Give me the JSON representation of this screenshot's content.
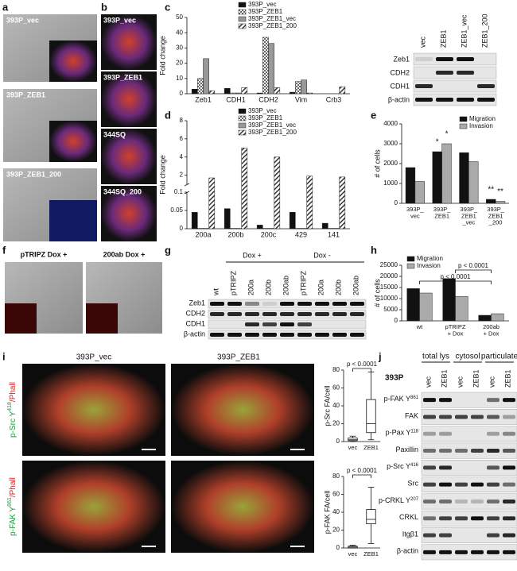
{
  "panel_labels": [
    "a",
    "b",
    "c",
    "d",
    "e",
    "f",
    "g",
    "h",
    "i",
    "j"
  ],
  "a": {
    "images": [
      "393P_vec",
      "393P_ZEB1",
      "393P_ZEB1_200"
    ]
  },
  "b": {
    "images": [
      "393P_vec",
      "393P_ZEB1",
      "344SQ",
      "344SQ_200"
    ]
  },
  "c_blot": {
    "lanes": [
      "vec",
      "ZEB1",
      "ZEB1_vec",
      "ZEB1_200"
    ],
    "rows": [
      "Zeb1",
      "CDH2",
      "CDH1",
      "β-actin"
    ]
  },
  "f": {
    "images": [
      "pTRIPZ Dox +",
      "200ab Dox +"
    ]
  },
  "g": {
    "groups": [
      "Dox +",
      "Dox -"
    ],
    "lanes": [
      "wt",
      "pTRIPZ",
      "200a",
      "200b",
      "200ab",
      "pTRIPZ",
      "200a",
      "200b",
      "200ab"
    ],
    "rows": [
      "Zeb1",
      "CDH2",
      "CDH1",
      "β-actin"
    ]
  },
  "i": {
    "columns": [
      "393P_vec",
      "393P_ZEB1"
    ],
    "rows": [
      {
        "label": "p-Src Y",
        "sup": "418",
        "suffix": "/Phall"
      },
      {
        "label": "p-FAK Y",
        "sup": "861",
        "suffix": "/Phall"
      }
    ]
  },
  "j": {
    "cell_line": "393P",
    "groups": [
      "total lys",
      "cytosol",
      "particulate"
    ],
    "lanes": [
      "vec",
      "ZEB1",
      "vec",
      "ZEB1",
      "vec",
      "ZEB1"
    ],
    "rows": [
      {
        "label": "p-FAK Y",
        "sup": "861"
      },
      {
        "label": "FAK"
      },
      {
        "label": "p-Pax Y",
        "sup": "118"
      },
      {
        "label": "Paxillin"
      },
      {
        "label": "p-Src Y",
        "sup": "416"
      },
      {
        "label": "Src"
      },
      {
        "label": "p-CRKL Y",
        "sup": "207"
      },
      {
        "label": "CRKL"
      },
      {
        "label": "Itgβ1"
      },
      {
        "label": "β-actin"
      }
    ]
  },
  "chart_data": [
    {
      "type": "bar",
      "ylabel": "Fold change",
      "categories": [
        "Zeb1",
        "CDH1",
        "CDH2",
        "Vim",
        "Crb3"
      ],
      "ylim": [
        0,
        50
      ],
      "yticks": [
        0,
        10,
        20,
        30,
        40,
        50
      ],
      "series": [
        {
          "name": "393P_vec",
          "color": "#111111",
          "values": [
            3,
            3.5,
            0.5,
            1,
            0
          ]
        },
        {
          "name": "393P_ZEB1",
          "color": "#888888",
          "pattern": "check",
          "values": [
            10,
            0.5,
            37,
            8,
            0
          ]
        },
        {
          "name": "393P_ZEB1_vec",
          "color": "#999999",
          "values": [
            23,
            0.5,
            33,
            9,
            0
          ]
        },
        {
          "name": "393P_ZEB1_200",
          "color": "#555555",
          "pattern": "hatch",
          "values": [
            2,
            4,
            4,
            0.5,
            4.5
          ]
        }
      ]
    },
    {
      "type": "bar",
      "ylabel": "Fold change",
      "categories": [
        "200a",
        "200b",
        "200c",
        "429",
        "141"
      ],
      "ylim": [
        0,
        8
      ],
      "axis_break": [
        0.1,
        1
      ],
      "yticks": [
        0,
        0.05,
        0.1,
        2,
        4,
        6,
        8
      ],
      "series": [
        {
          "name": "393P_vec",
          "color": "#111111",
          "values": [
            0.045,
            0.055,
            0.01,
            0.045,
            0.015
          ]
        },
        {
          "name": "393P_ZEB1",
          "color": "#888888",
          "pattern": "check",
          "values": [
            0.001,
            0.001,
            0.001,
            0.001,
            0.001
          ]
        },
        {
          "name": "393P_ZEB1_vec",
          "color": "#999999",
          "values": [
            0.001,
            0.001,
            0.001,
            0.001,
            0.001
          ]
        },
        {
          "name": "393P_ZEB1_200",
          "color": "#555555",
          "pattern": "hatch",
          "values": [
            1.7,
            5,
            4,
            1.9,
            1.8
          ]
        }
      ]
    },
    {
      "type": "bar",
      "ylabel": "# of cells",
      "categories": [
        "393P_\nvec",
        "393P_\nZEB1",
        "393P_\nZEB1\n_vec",
        "393P_\nZEB1\n_200"
      ],
      "ylim": [
        0,
        4000
      ],
      "yticks": [
        0,
        1000,
        2000,
        3000,
        4000
      ],
      "series": [
        {
          "name": "Migration",
          "color": "#111111",
          "values": [
            1800,
            2600,
            2550,
            200
          ]
        },
        {
          "name": "Invasion",
          "color": "#aaaaaa",
          "values": [
            1100,
            3000,
            2100,
            100
          ]
        }
      ],
      "annotations": [
        {
          "text": "*",
          "category": "393P_\nZEB1",
          "series": "Migration"
        },
        {
          "text": "*",
          "category": "393P_\nZEB1",
          "series": "Invasion"
        },
        {
          "text": "**",
          "category": "393P_\nZEB1\n_200",
          "series": "Migration"
        },
        {
          "text": "**",
          "category": "393P_\nZEB1\n_200",
          "series": "Invasion"
        }
      ]
    },
    {
      "type": "bar",
      "ylabel": "# of cells",
      "categories": [
        "wt",
        "pTRIPZ\n+ Dox",
        "200ab\n+ Dox"
      ],
      "ylim": [
        0,
        25000
      ],
      "yticks": [
        0,
        5000,
        10000,
        15000,
        20000,
        25000
      ],
      "series": [
        {
          "name": "Migration",
          "color": "#111111",
          "values": [
            14500,
            19000,
            2500
          ]
        },
        {
          "name": "Invasion",
          "color": "#aaaaaa",
          "values": [
            12500,
            11000,
            3200
          ]
        }
      ],
      "brackets": [
        {
          "text": "p < 0.0001",
          "from": "pTRIPZ\n+ Dox",
          "to": "200ab\n+ Dox"
        },
        {
          "text": "p < 0.0001",
          "from": "wt",
          "to": "200ab\n+ Dox"
        }
      ]
    },
    {
      "type": "box",
      "ylabel": "p-Src FA/cell",
      "categories": [
        "vec",
        "ZEB1"
      ],
      "ylim": [
        0,
        80
      ],
      "yticks": [
        0,
        20,
        40,
        60,
        80
      ],
      "annotation": "p < 0.0001",
      "boxes": [
        {
          "min": 0,
          "q1": 1,
          "median": 2,
          "q3": 4,
          "max": 6
        },
        {
          "min": 2,
          "q1": 10,
          "median": 20,
          "q3": 47,
          "max": 78
        }
      ]
    },
    {
      "type": "box",
      "ylabel": "p-FAK FA/cell",
      "categories": [
        "vec",
        "ZEB1"
      ],
      "ylim": [
        0,
        80
      ],
      "yticks": [
        0,
        20,
        40,
        60,
        80
      ],
      "annotation": "p < 0.0001",
      "boxes": [
        {
          "min": 0,
          "q1": 0,
          "median": 1,
          "q3": 2,
          "max": 3
        },
        {
          "min": 5,
          "q1": 27,
          "median": 32,
          "q3": 43,
          "max": 68
        }
      ]
    }
  ]
}
